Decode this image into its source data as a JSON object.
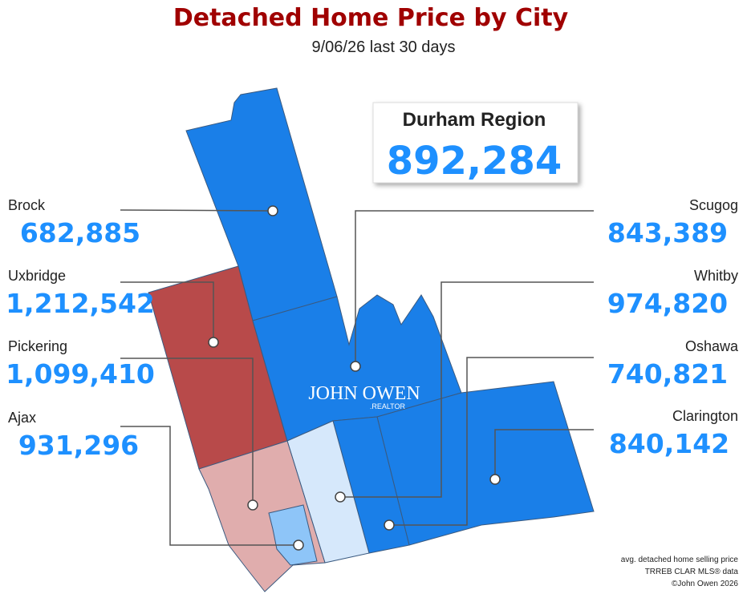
{
  "header": {
    "title": "Detached Home Price by City",
    "subtitle": "9/06/26  last 30 days"
  },
  "region": {
    "name": "Durham Region",
    "value": "892,284"
  },
  "cities": [
    {
      "name": "Brock",
      "value": "682,885"
    },
    {
      "name": "Uxbridge",
      "value": "1,212,542"
    },
    {
      "name": "Pickering",
      "value": "1,099,410"
    },
    {
      "name": "Ajax",
      "value": "931,296"
    },
    {
      "name": "Scugog",
      "value": "843,389"
    },
    {
      "name": "Whitby",
      "value": "974,820"
    },
    {
      "name": "Oshawa",
      "value": "740,821"
    },
    {
      "name": "Clarington",
      "value": "840,142"
    }
  ],
  "logo": {
    "name": "JOHN OWEN",
    "sub": ".REALTOR"
  },
  "footnotes": [
    "avg. detached home selling price",
    "TRREB CLAR MLS® data",
    "©John Owen 2026"
  ]
}
